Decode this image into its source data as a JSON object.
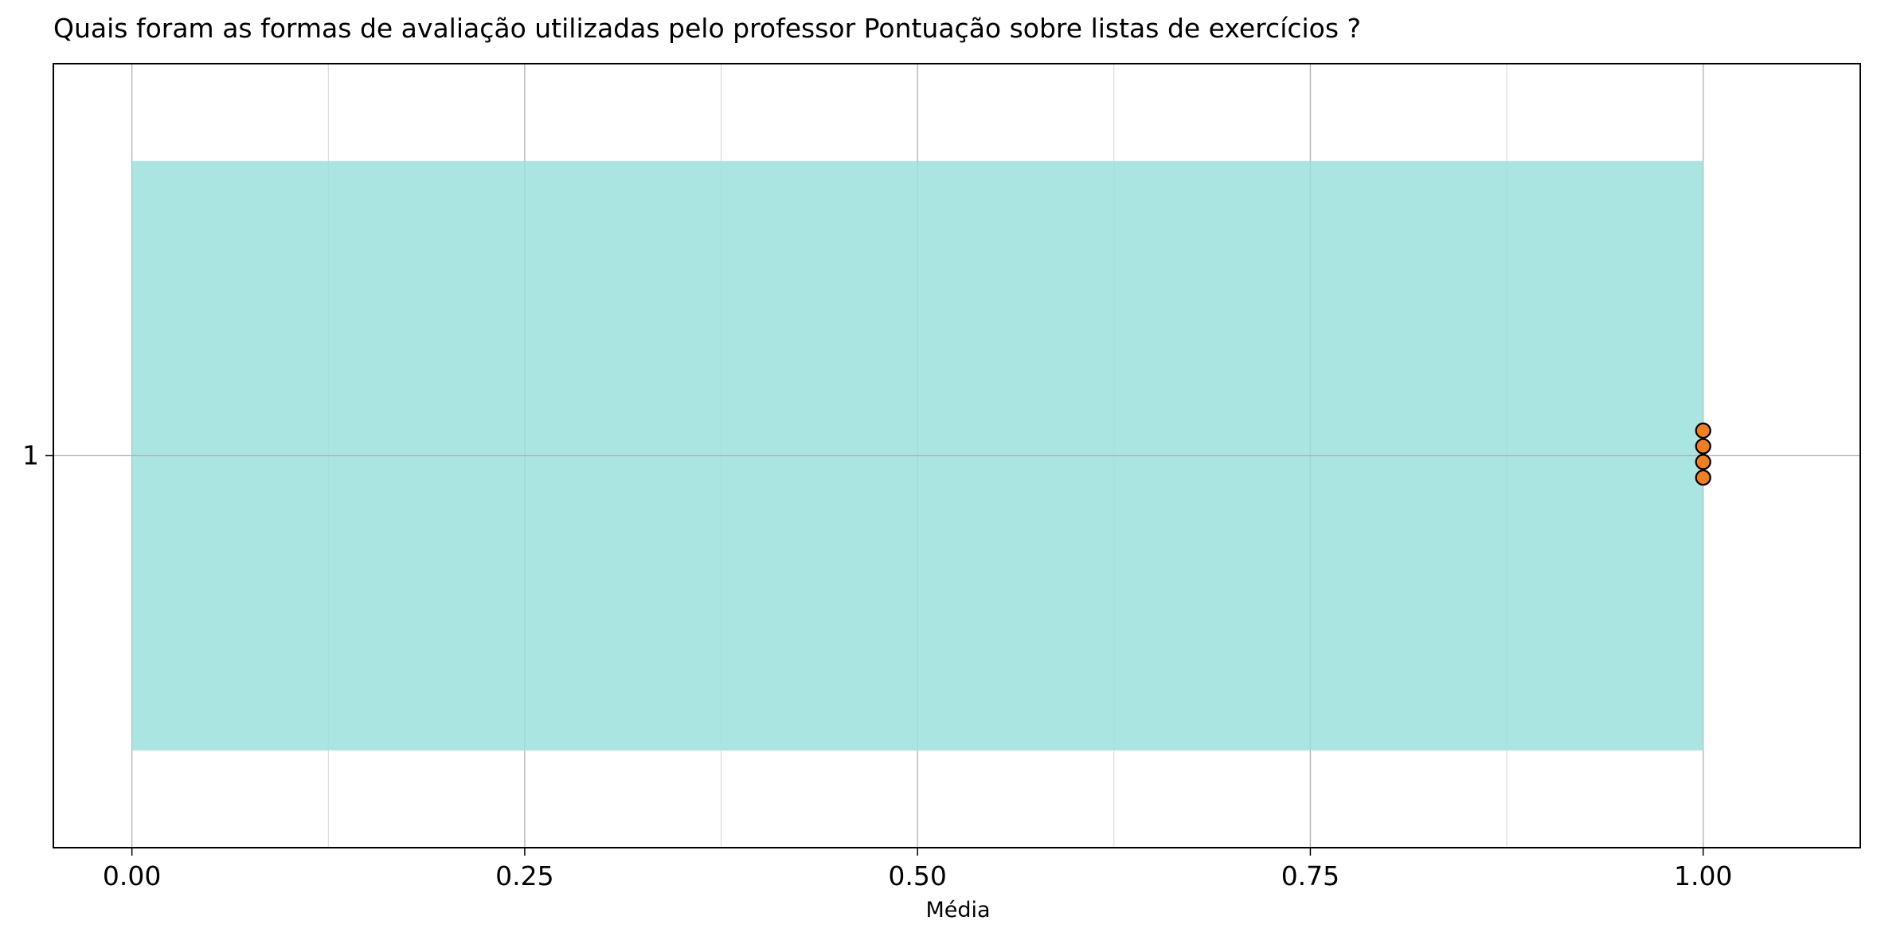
{
  "chart_data": {
    "type": "bar",
    "orientation": "horizontal",
    "title": "Quais foram as formas de avaliação utilizadas pelo professor Pontuação sobre listas de exercícios ?",
    "xlabel": "Média",
    "ylabel": "",
    "categories": [
      "1"
    ],
    "values": [
      1.0
    ],
    "points": [
      {
        "category": "1",
        "x": 1.0,
        "y": 1.08
      },
      {
        "category": "1",
        "x": 1.0,
        "y": 1.03
      },
      {
        "category": "1",
        "x": 1.0,
        "y": 0.98
      },
      {
        "category": "1",
        "x": 1.0,
        "y": 0.93
      }
    ],
    "xlim": [
      -0.05,
      1.1
    ],
    "ylim": [
      -0.25,
      2.25
    ],
    "xticks": [
      0.0,
      0.25,
      0.5,
      0.75,
      1.0
    ],
    "xtick_labels": [
      "0.00",
      "0.25",
      "0.50",
      "0.75",
      "1.00"
    ],
    "x_minor_ticks": [
      0.125,
      0.375,
      0.625,
      0.875
    ],
    "bar_span": [
      0.06,
      1.94
    ],
    "grid": true,
    "colors": {
      "bar": "#9be1dd",
      "point_fill": "#f07f22",
      "point_edge": "#000000",
      "grid": "#b0b0b0"
    }
  }
}
